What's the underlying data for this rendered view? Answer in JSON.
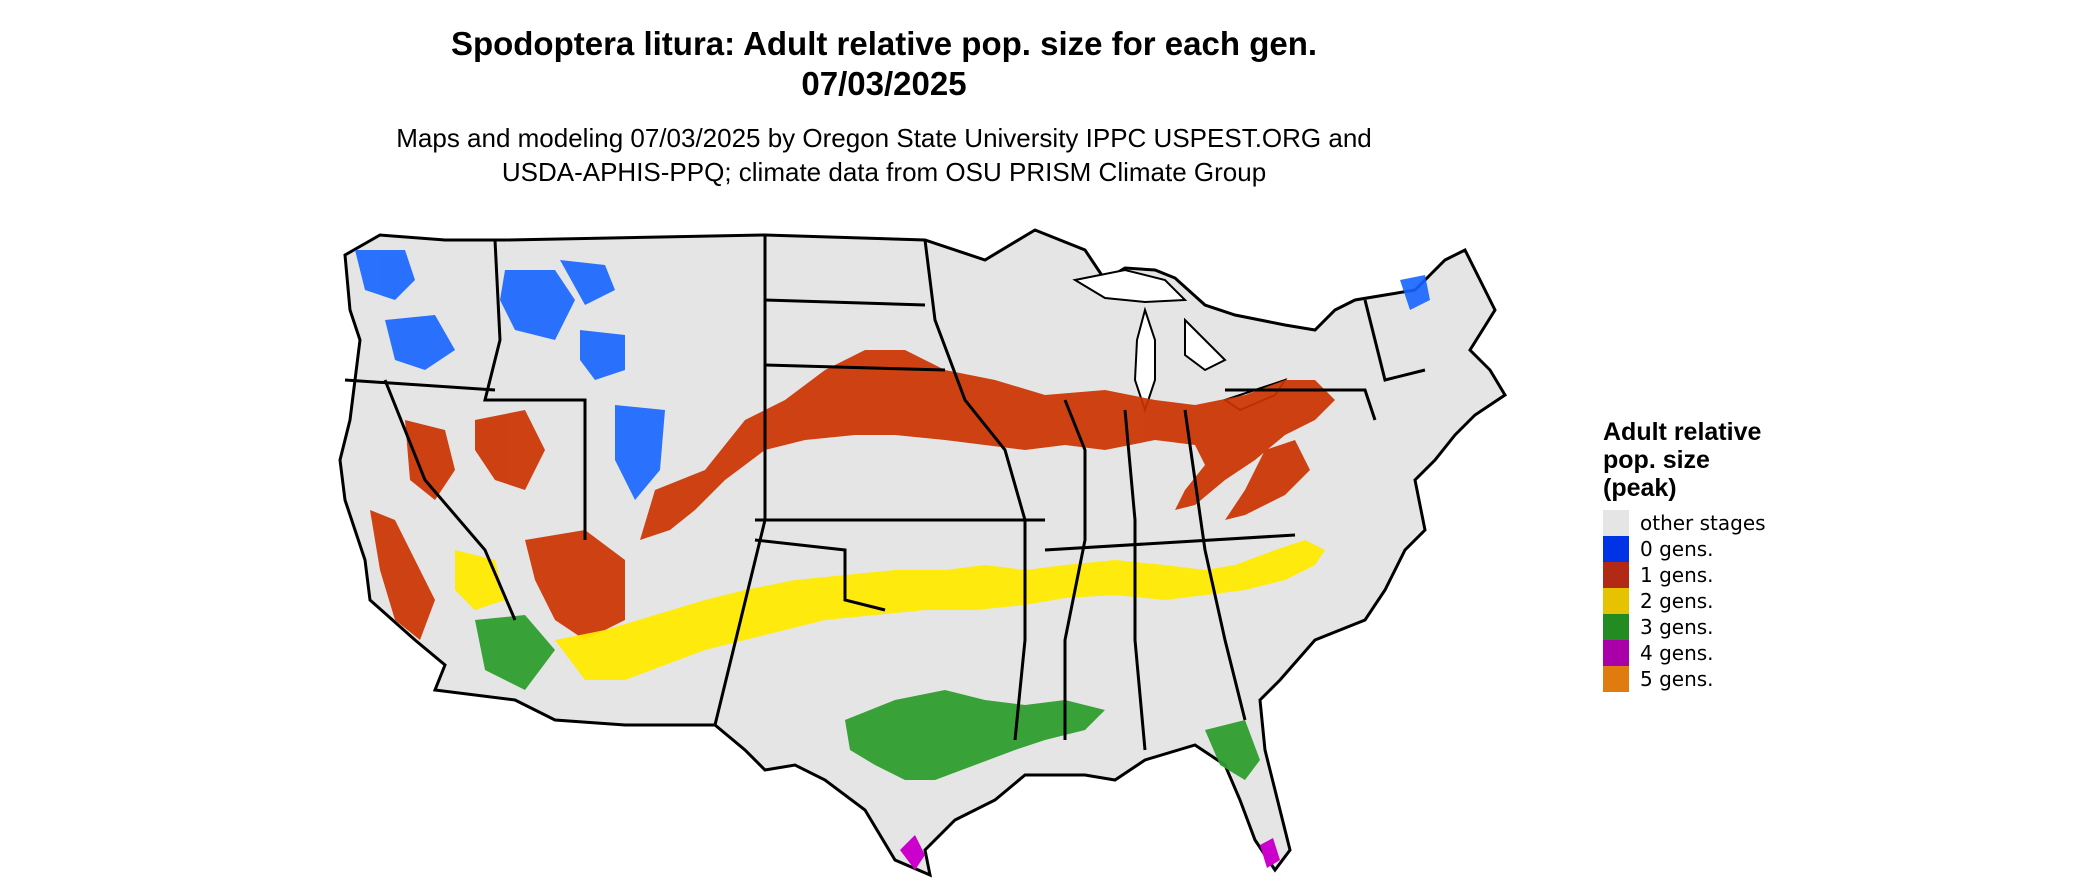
{
  "title_line1": "Spodoptera litura: Adult relative pop. size for each gen.",
  "title_line2": "07/03/2025",
  "subtitle_line1": "Maps and modeling 07/03/2025 by Oregon State University IPPC USPEST.ORG and",
  "subtitle_line2": "USDA-APHIS-PPQ; climate data from OSU PRISM Climate Group",
  "legend": {
    "title_line1": "Adult relative",
    "title_line2": "pop. size",
    "title_line3": "(peak)",
    "items": [
      {
        "label": "other stages",
        "color": "#e5e5e5"
      },
      {
        "label": "0 gens.",
        "color": "#0033e6"
      },
      {
        "label": "1 gens.",
        "color": "#b22a15"
      },
      {
        "label": "2 gens.",
        "color": "#e6c200"
      },
      {
        "label": "3 gens.",
        "color": "#228b22"
      },
      {
        "label": "4 gens.",
        "color": "#aa00aa"
      },
      {
        "label": "5 gens.",
        "color": "#e07b10"
      }
    ]
  },
  "map_colors": {
    "land": "#e5e5e5",
    "border": "#000000",
    "gen0": "#1565ff",
    "gen1": "#cc3300",
    "gen2": "#ffea00",
    "gen3": "#2e9d2e",
    "gen4": "#cc00cc"
  }
}
